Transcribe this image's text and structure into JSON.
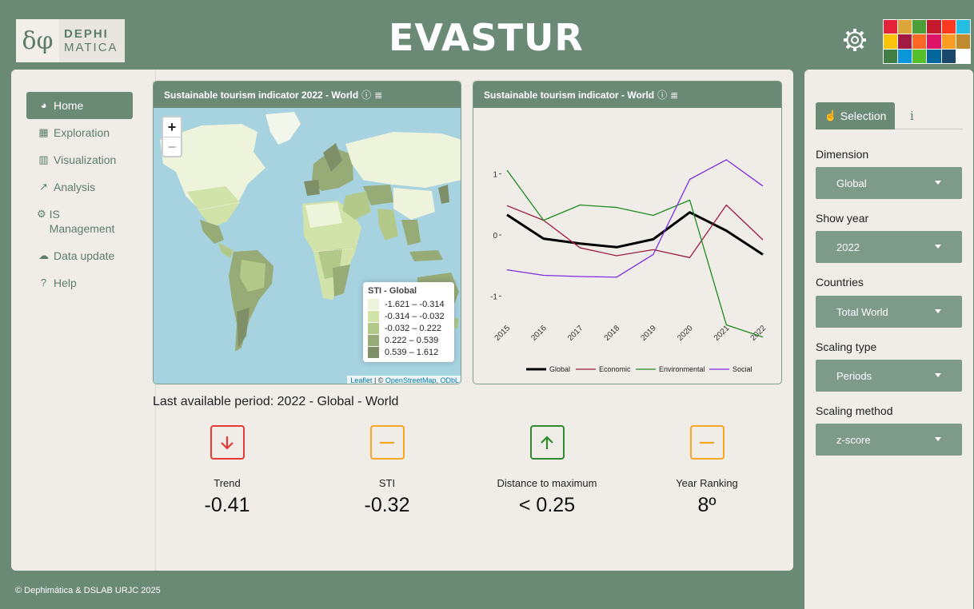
{
  "header": {
    "logo_mark": "δφ",
    "logo_line1": "DEPHI",
    "logo_line2": "MATICA",
    "title": "EVASTUR",
    "settings_icon": "gear-icon",
    "sdg_colors": [
      "#e5243b",
      "#dda63a",
      "#4c9f38",
      "#c5192d",
      "#ff3a21",
      "#26bde2",
      "#fcc30b",
      "#a21942",
      "#fd6925",
      "#dd1367",
      "#fd9d24",
      "#bf8b2e",
      "#3f7e44",
      "#0a97d9",
      "#56c02b",
      "#00689d",
      "#19486a",
      "#ffffff"
    ]
  },
  "nav": {
    "items": [
      {
        "icon": "dashboard-icon",
        "glyph": "◕",
        "label": "Home"
      },
      {
        "icon": "table-icon",
        "glyph": "▦",
        "label": "Exploration"
      },
      {
        "icon": "map-icon",
        "glyph": "▥",
        "label": "Visualization"
      },
      {
        "icon": "chart-line-icon",
        "glyph": "↗",
        "label": "Analysis"
      },
      {
        "icon": "cog-icon",
        "glyph": "⚙",
        "label": "IS Management"
      },
      {
        "icon": "cloud-upload-icon",
        "glyph": "☁",
        "label": "Data update"
      },
      {
        "icon": "question-icon",
        "glyph": "?",
        "label": "Help"
      }
    ]
  },
  "map_card": {
    "title": "Sustainable tourism indicator 2022 - World",
    "zoom_in": "+",
    "zoom_out": "−",
    "legend_title": "STI - Global",
    "legend": [
      {
        "label": "-1.621 – -0.314",
        "color": "#eef3dc"
      },
      {
        "label": "-0.314 – -0.032",
        "color": "#d2e3a9"
      },
      {
        "label": "-0.032 – 0.222",
        "color": "#b3c98a"
      },
      {
        "label": "0.222 – 0.539",
        "color": "#97ab77"
      },
      {
        "label": "0.539 – 1.612",
        "color": "#7f9068"
      }
    ],
    "attribution_leaflet": "Leaflet",
    "attribution_sep": " | © ",
    "attribution_osm": "OpenStreetMap",
    "attribution_comma": ", ",
    "attribution_odbl": "ODbL"
  },
  "line_card": {
    "title": "Sustainable tourism indicator - World"
  },
  "chart_data": {
    "type": "line",
    "x": [
      "2015",
      "2016",
      "2017",
      "2018",
      "2019",
      "2020",
      "2021",
      "2022"
    ],
    "y_ticks": [
      "1",
      "0",
      "-1"
    ],
    "ylim": [
      -1.6,
      1.3
    ],
    "grid": false,
    "legend_position": "bottom",
    "series": [
      {
        "name": "Global",
        "color": "#000000",
        "width": 3,
        "values": [
          0.33,
          -0.06,
          -0.14,
          -0.2,
          -0.07,
          0.37,
          0.07,
          -0.32
        ]
      },
      {
        "name": "Economic",
        "color": "#9b1c3f",
        "width": 1.3,
        "values": [
          0.48,
          0.24,
          -0.21,
          -0.34,
          -0.24,
          -0.37,
          0.49,
          -0.08
        ]
      },
      {
        "name": "Environmental",
        "color": "#1f8a1f",
        "width": 1.3,
        "values": [
          1.06,
          0.24,
          0.49,
          0.45,
          0.32,
          0.57,
          -1.47,
          -1.67
        ]
      },
      {
        "name": "Social",
        "color": "#7b2be0",
        "width": 1.3,
        "values": [
          -0.57,
          -0.66,
          -0.68,
          -0.69,
          -0.32,
          0.91,
          1.23,
          0.8
        ]
      }
    ]
  },
  "kpi": {
    "title": "Last available period: 2022 - Global - World",
    "items": [
      {
        "icon": "arrow-down-icon",
        "color": "#e53935",
        "label": "Trend",
        "value": "-0.41"
      },
      {
        "icon": "minus-icon",
        "color": "#f5a623",
        "label": "STI",
        "value": "-0.32"
      },
      {
        "icon": "arrow-up-icon",
        "color": "#2e8b2e",
        "label": "Distance to maximum",
        "value": "< 0.25"
      },
      {
        "icon": "minus-icon",
        "color": "#f5a623",
        "label": "Year Ranking",
        "value": "8º"
      }
    ]
  },
  "selection": {
    "tab_label": "Selection",
    "tab_icon": "hand-pointer-icon",
    "info_tab": "i",
    "dimension_label": "Dimension",
    "dimension_value": "Global",
    "year_label": "Show year",
    "year_value": "2022",
    "countries_label": "Countries",
    "countries_value": "Total World",
    "scaling_type_label": "Scaling type",
    "scaling_type_value": "Periods",
    "scaling_method_label": "Scaling method",
    "scaling_method_value": "z-score"
  },
  "footer": {
    "text": "© Dephimática & DSLAB URJC 2025"
  }
}
